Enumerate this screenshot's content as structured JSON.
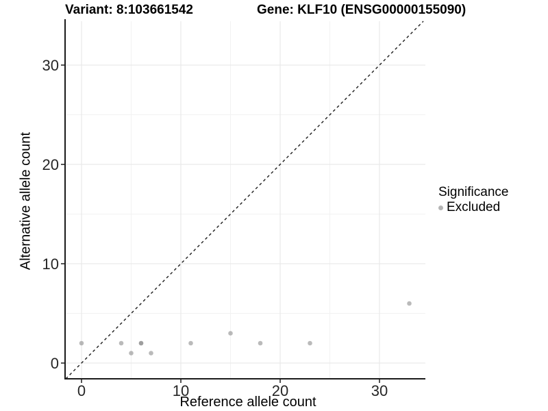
{
  "titles": {
    "variant": "Variant: 8:103661542",
    "gene": "Gene: KLF10 (ENSG00000155090)"
  },
  "chart_data": {
    "type": "scatter",
    "xlabel": "Reference allele count",
    "ylabel": "Alternative allele count",
    "xticks": [
      0,
      10,
      20,
      30
    ],
    "yticks": [
      0,
      10,
      20,
      30
    ],
    "minor_xticks": [
      5,
      15,
      25
    ],
    "minor_yticks": [
      5,
      15,
      25
    ],
    "xlim": [
      -1.655,
      34.62
    ],
    "ylim": [
      -1.586,
      34.414
    ],
    "grid": true,
    "legend_position": "right",
    "identity_line": {
      "slope": 1,
      "intercept": 0,
      "style": "dashed",
      "color": "#1a1a1a"
    },
    "series": [
      {
        "name": "Excluded",
        "points": [
          {
            "x": 0,
            "y": 2
          },
          {
            "x": 4,
            "y": 2
          },
          {
            "x": 5,
            "y": 1
          },
          {
            "x": 6,
            "y": 2
          },
          {
            "x": 6,
            "y": 2
          },
          {
            "x": 7,
            "y": 1
          },
          {
            "x": 11,
            "y": 2
          },
          {
            "x": 15,
            "y": 3
          },
          {
            "x": 18,
            "y": 2
          },
          {
            "x": 23,
            "y": 2
          },
          {
            "x": 33,
            "y": 6
          }
        ]
      }
    ],
    "style": {
      "point_color": "#8c8c8c",
      "point_opacity": 0.6,
      "point_radius": 3.3,
      "axis_color": "#1a1a1a",
      "tick_label_color": "#262626",
      "major_grid_color": "#e5e5e5",
      "minor_grid_color": "#f2f2f2",
      "background": "#ffffff"
    }
  },
  "legend": {
    "title": "Significance",
    "items": [
      {
        "label": "Excluded",
        "color": "#b4b4b4"
      }
    ]
  }
}
